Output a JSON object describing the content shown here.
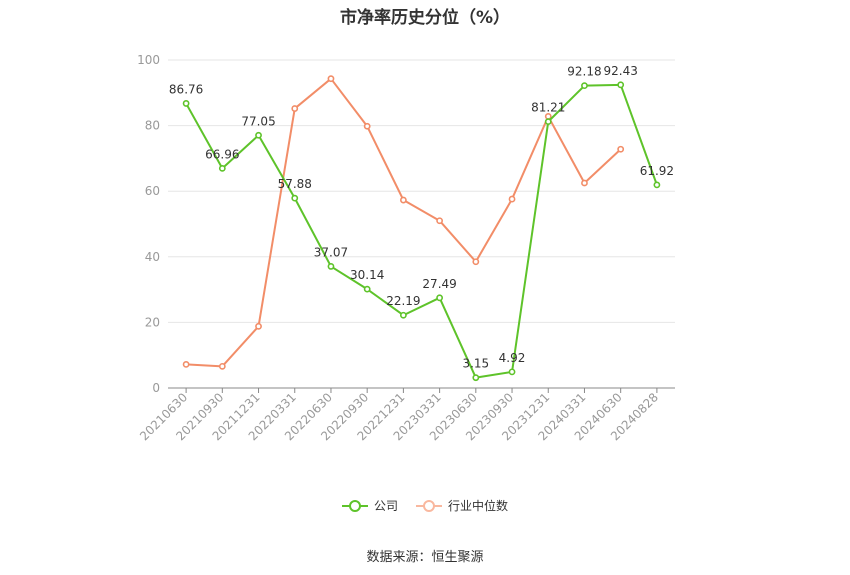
{
  "chart_data": {
    "type": "line",
    "title": "市净率历史分位（%）",
    "categories": [
      "20210630",
      "20210930",
      "20211231",
      "20220331",
      "20220630",
      "20220930",
      "20221231",
      "20230331",
      "20230630",
      "20230930",
      "20231231",
      "20240331",
      "20240630",
      "20240828"
    ],
    "ylim": [
      0,
      100
    ],
    "yticks": [
      0,
      20,
      40,
      60,
      80,
      100
    ],
    "grid": true,
    "legend_position": "bottom",
    "series": [
      {
        "name": "公司",
        "color": "#5ec32a",
        "values": [
          86.76,
          66.96,
          77.05,
          57.88,
          37.07,
          30.14,
          22.19,
          27.49,
          3.15,
          4.92,
          81.21,
          92.18,
          92.43,
          61.92
        ],
        "labels": [
          "86.76",
          "66.96",
          "77.05",
          "57.88",
          "37.07",
          "30.14",
          "22.19",
          "27.49",
          "3.15",
          "4.92",
          "81.21",
          "92.18",
          "92.43",
          "61.92"
        ]
      },
      {
        "name": "行业中位数",
        "color": "#f28d68",
        "values": [
          7.2,
          6.6,
          18.8,
          85.2,
          94.3,
          79.8,
          57.3,
          51.0,
          38.5,
          57.6,
          82.8,
          62.5,
          72.8,
          null
        ]
      }
    ]
  },
  "source": "数据来源：恒生聚源"
}
